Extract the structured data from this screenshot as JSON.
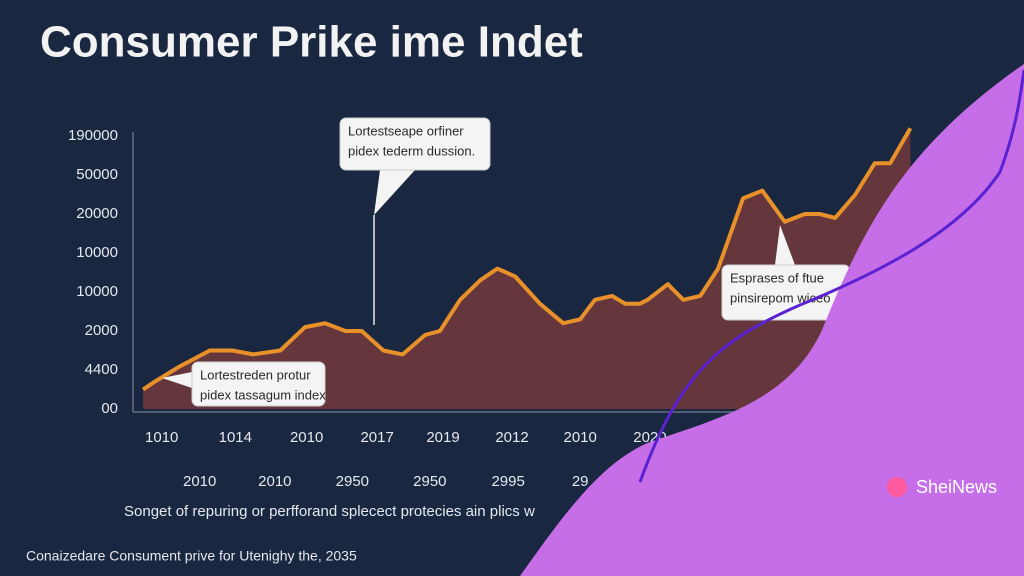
{
  "chart_data": {
    "type": "area",
    "title": "Consumer Prike ime Indet",
    "caption": "Songet of repuring or perfforand splecect protecies ain plics w",
    "footer": "Conaizedare Consument prive for Utenighy the, 2035",
    "brand": "SheiNews",
    "color": "#e8902a",
    "fill_color": "#6e3a3c",
    "grid": false,
    "xlim": [
      0,
      100
    ],
    "ylim": [
      0,
      7
    ],
    "yticks": [
      {
        "value": 0,
        "label": "00"
      },
      {
        "value": 1,
        "label": "4400"
      },
      {
        "value": 2,
        "label": "2000"
      },
      {
        "value": 3,
        "label": "10000"
      },
      {
        "value": 4,
        "label": "10000"
      },
      {
        "value": 5,
        "label": "20000"
      },
      {
        "value": 6,
        "label": "50000"
      },
      {
        "value": 7,
        "label": "190000"
      }
    ],
    "xticks": [
      {
        "value": 2.8,
        "label": "1010"
      },
      {
        "value": 12.3,
        "label": "1014"
      },
      {
        "value": 21.5,
        "label": "2010"
      },
      {
        "value": 30.6,
        "label": "2017"
      },
      {
        "value": 39.1,
        "label": "2019"
      },
      {
        "value": 48.0,
        "label": "2012"
      },
      {
        "value": 56.8,
        "label": "2010"
      },
      {
        "value": 65.8,
        "label": "2020"
      }
    ],
    "xticks_2": [
      {
        "value": 7.7,
        "label": "2010"
      },
      {
        "value": 17.4,
        "label": "2010"
      },
      {
        "value": 27.4,
        "label": "2950"
      },
      {
        "value": 37.4,
        "label": "2950"
      },
      {
        "value": 47.5,
        "label": "2995"
      },
      {
        "value": 56.8,
        "label": "29"
      }
    ],
    "x": [
      0.4,
      1.9,
      5.2,
      9.0,
      11.9,
      14.6,
      18.1,
      21.3,
      23.9,
      26.5,
      28.6,
      31.4,
      33.9,
      36.8,
      38.7,
      41.3,
      43.9,
      46.1,
      48.4,
      51.6,
      54.6,
      56.8,
      58.7,
      60.9,
      62.6,
      64.5,
      65.5,
      68.1,
      70.1,
      72.3,
      74.6,
      77.8,
      80.3,
      83.2,
      85.8,
      87.7,
      89.7,
      92.3,
      94.8,
      96.8,
      99.4
    ],
    "values": [
      0.5,
      0.7,
      1.1,
      1.5,
      1.5,
      1.4,
      1.5,
      2.1,
      2.2,
      2.0,
      2.0,
      1.5,
      1.4,
      1.9,
      2.0,
      2.8,
      3.3,
      3.6,
      3.4,
      2.7,
      2.2,
      2.3,
      2.8,
      2.9,
      2.7,
      2.7,
      2.8,
      3.2,
      2.8,
      2.9,
      3.6,
      5.4,
      5.6,
      4.8,
      5.0,
      5.0,
      4.9,
      5.5,
      6.3,
      6.3,
      7.2
    ],
    "annotations": [
      {
        "lines": [
          "Lortestseape orfiner",
          "pidex tederm dussion."
        ]
      },
      {
        "lines": [
          "Lortestreden protur",
          "pidex tassagum index"
        ]
      },
      {
        "lines": [
          "Esprases of ftue",
          "pinsirepom wiceo"
        ]
      }
    ]
  }
}
